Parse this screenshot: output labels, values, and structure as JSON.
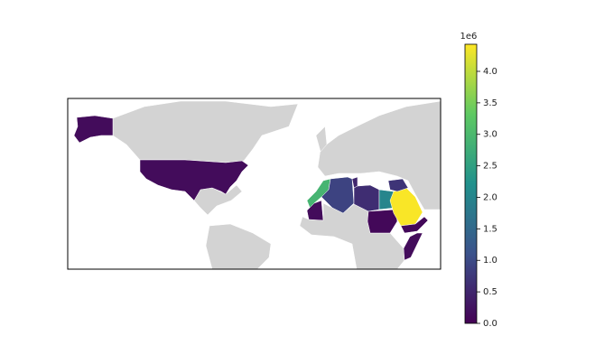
{
  "chart_data": {
    "type": "choropleth",
    "values": [
      0.15,
      2.9,
      0.9,
      0.5,
      0.6,
      2.0,
      0.15,
      0.1,
      4.4,
      0.7,
      0.1,
      0.15
    ],
    "colorbar": {
      "lim": [
        0,
        4.43
      ],
      "ticks": [
        {
          "value": 0,
          "label": "0.0"
        },
        {
          "value": 0.5,
          "label": "0.5"
        },
        {
          "value": 1,
          "label": "1.0"
        },
        {
          "value": 1.5,
          "label": "1.5"
        },
        {
          "value": 2,
          "label": "2.0"
        },
        {
          "value": 2.5,
          "label": "2.5"
        },
        {
          "value": 3,
          "label": "3.0"
        },
        {
          "value": 3.5,
          "label": "3.5"
        },
        {
          "value": 4,
          "label": "4.0"
        }
      ],
      "offset_label": "1e6",
      "colormap": "viridis"
    }
  }
}
